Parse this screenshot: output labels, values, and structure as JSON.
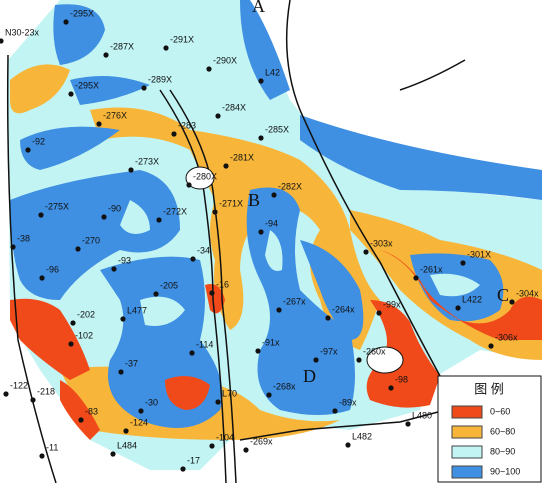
{
  "map": {
    "letters": [
      "A",
      "B",
      "C",
      "D"
    ],
    "wells": [
      "-295X",
      "N30-23x",
      "-287X",
      "-291X",
      "-290X",
      "L42",
      "-289X",
      "-295X",
      "-284X",
      "-276X",
      "-283",
      "-285X",
      "-92",
      "-281X",
      "-273X",
      "-280X",
      "-282X",
      "-275X",
      "-90",
      "-272X",
      "-271X",
      "-94",
      "-303x",
      "-301X",
      "-38",
      "-270",
      "-34",
      "-261x",
      "-96",
      "-93",
      "-205",
      "-16",
      "-267x",
      "-264x",
      "-99x",
      "L422",
      "-304x",
      "-306x",
      "-202",
      "L477",
      "-102",
      "-114",
      "-91x",
      "-97x",
      "-260x",
      "-37",
      "-98",
      "-122",
      "-218",
      "-268x",
      "-89x",
      "-30",
      "L70",
      "-124",
      "L480",
      "-83",
      "-104",
      "-269x",
      "L482",
      "L484",
      "-17",
      "-11"
    ],
    "legend": {
      "title": "图 例",
      "items": [
        {
          "label": "0~60",
          "color": "#f04a1a"
        },
        {
          "label": "60~80",
          "color": "#f7b63a"
        },
        {
          "label": "80~90",
          "color": "#c2f4f4"
        },
        {
          "label": "90~100",
          "color": "#3f8fe2"
        }
      ]
    }
  }
}
